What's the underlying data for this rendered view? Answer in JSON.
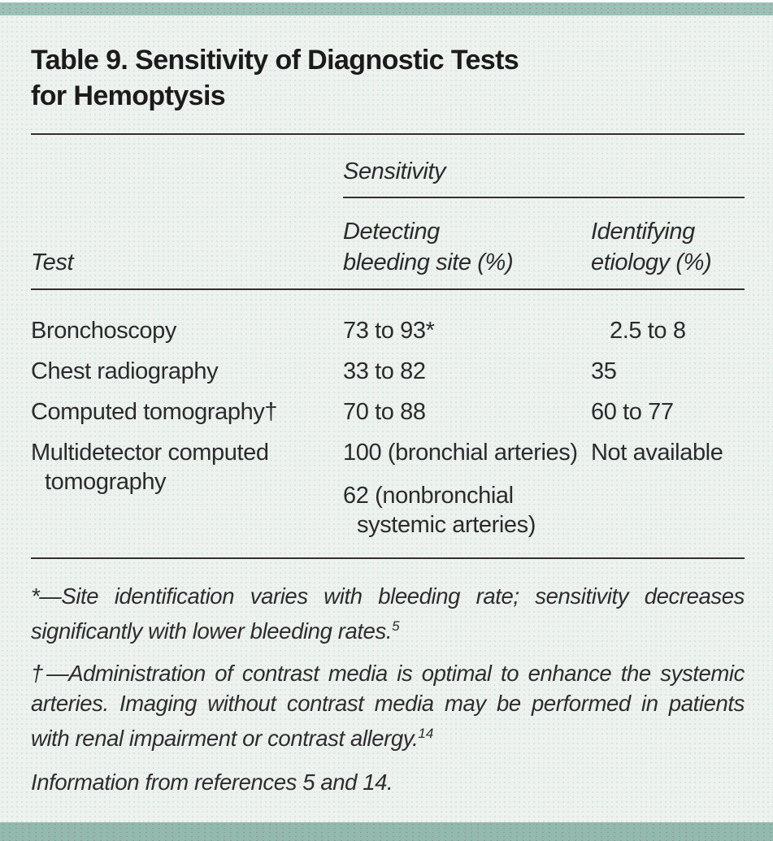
{
  "colors": {
    "top_bar": "#9cc0b5",
    "bottom_bar": "#93b9ae",
    "page_background": "#edf2ef",
    "rule": "#342f31",
    "title_text": "#1c1a1b",
    "body_text": "#2b2b2b"
  },
  "table": {
    "title": {
      "line1": "Table 9. Sensitivity of Diagnostic Tests",
      "line2": "for Hemoptysis"
    },
    "header": {
      "group_label": "Sensitivity",
      "test_label": "Test",
      "col_detecting": {
        "line1": "Detecting",
        "line2": "bleeding site (%)"
      },
      "col_identifying": {
        "line1": "Identifying",
        "line2": "etiology (%)"
      }
    },
    "rows": [
      {
        "test": "Bronchoscopy",
        "detecting_bleeding_site": "73 to 93*",
        "identifying_etiology": "2.5 to 8"
      },
      {
        "test": "Chest radiography",
        "detecting_bleeding_site": "33 to 82",
        "identifying_etiology": "35"
      },
      {
        "test": "Computed tomography†",
        "detecting_bleeding_site": "70 to 88",
        "identifying_etiology": "60 to 77"
      },
      {
        "test": "Multidetector computed tomography",
        "detecting_bleeding_site": "100 (bronchial arteries)",
        "detecting_bleeding_site_2": "62 (nonbronchial systemic arteries)",
        "identifying_etiology": "Not available"
      }
    ],
    "footnotes": [
      {
        "text": "*—Site identification varies with bleeding rate; sensitivity decreases significantly with lower bleeding rates.",
        "reference": "5"
      },
      {
        "text": "†—Administration of contrast media is optimal to enhance the systemic arteries. Imaging without contrast media may be performed in patients with renal impairment or contrast allergy.",
        "reference": "14"
      }
    ],
    "source": "Information from references 5 and 14."
  }
}
